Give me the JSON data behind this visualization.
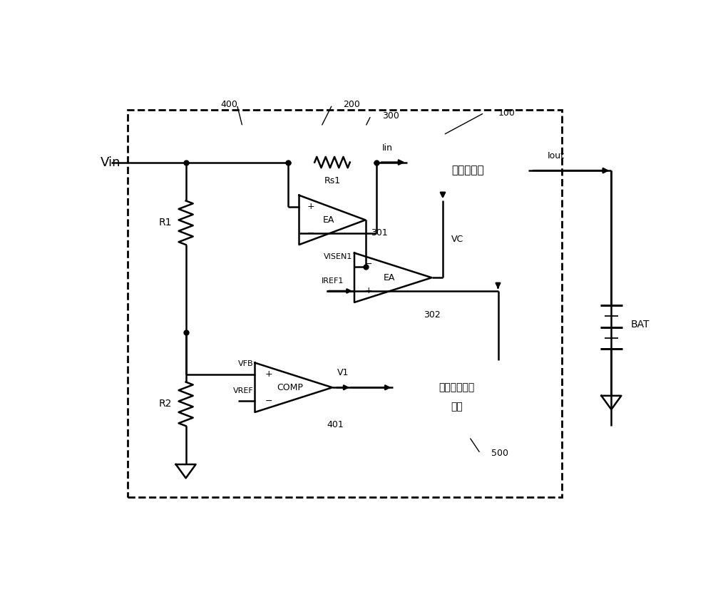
{
  "bg_color": "#ffffff",
  "lc": "#000000",
  "lw": 1.8,
  "fig_w": 10.0,
  "fig_h": 8.44,
  "dpi": 100,
  "xlim": [
    0,
    100
  ],
  "ylim": [
    0,
    84.4
  ]
}
